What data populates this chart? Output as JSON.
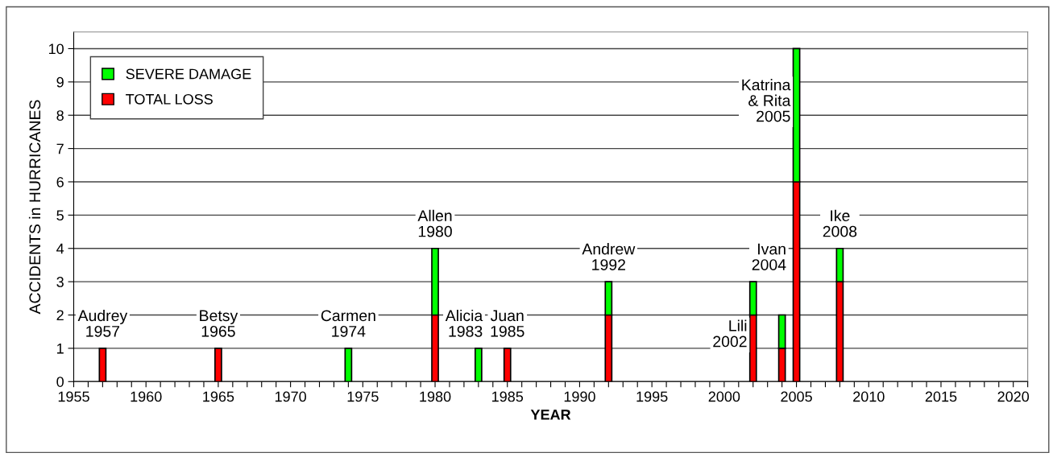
{
  "chart_data": {
    "type": "bar",
    "stacked": true,
    "xlabel": "YEAR",
    "ylabel": "ACCIDENTS in HURRICANES",
    "x": [
      1957,
      1965,
      1974,
      1980,
      1983,
      1985,
      1992,
      2002,
      2004,
      2005,
      2008
    ],
    "series": [
      {
        "name": "TOTAL LOSS",
        "color": "#ff0000",
        "values": [
          1,
          1,
          0,
          2,
          0,
          1,
          2,
          2,
          1,
          6,
          3
        ]
      },
      {
        "name": "SEVERE DAMAGE",
        "color": "#00ff00",
        "values": [
          0,
          0,
          1,
          2,
          1,
          0,
          1,
          1,
          1,
          4,
          1
        ]
      }
    ],
    "xlim": [
      1955,
      2021
    ],
    "ylim": [
      0,
      10.5
    ],
    "xticks": [
      1955,
      {
        "value": 1956,
        "label": null
      },
      {
        "value": 1957,
        "label": null
      },
      {
        "value": 1958,
        "label": null
      },
      {
        "value": 1959,
        "label": null
      },
      1960,
      {
        "value": 1961,
        "label": null
      },
      {
        "value": 1962,
        "label": null
      },
      {
        "value": 1963,
        "label": null
      },
      {
        "value": 1964,
        "label": null
      },
      1965,
      {
        "value": 1966,
        "label": null
      },
      {
        "value": 1967,
        "label": null
      },
      {
        "value": 1968,
        "label": null
      },
      {
        "value": 1969,
        "label": null
      },
      1970,
      {
        "value": 1971,
        "label": null
      },
      {
        "value": 1972,
        "label": null
      },
      {
        "value": 1973,
        "label": null
      },
      {
        "value": 1974,
        "label": null
      },
      1975,
      {
        "value": 1976,
        "label": null
      },
      {
        "value": 1977,
        "label": null
      },
      {
        "value": 1978,
        "label": null
      },
      {
        "value": 1979,
        "label": null
      },
      1980,
      {
        "value": 1981,
        "label": null
      },
      {
        "value": 1982,
        "label": null
      },
      {
        "value": 1983,
        "label": null
      },
      {
        "value": 1984,
        "label": null
      },
      1985,
      {
        "value": 1986,
        "label": null
      },
      {
        "value": 1987,
        "label": null
      },
      {
        "value": 1988,
        "label": null
      },
      {
        "value": 1989,
        "label": null
      },
      1990,
      {
        "value": 1991,
        "label": null
      },
      {
        "value": 1992,
        "label": null
      },
      {
        "value": 1993,
        "label": null
      },
      {
        "value": 1994,
        "label": null
      },
      1995,
      {
        "value": 1996,
        "label": null
      },
      {
        "value": 1997,
        "label": null
      },
      {
        "value": 1998,
        "label": null
      },
      {
        "value": 1999,
        "label": null
      },
      2000,
      {
        "value": 2001,
        "label": null
      },
      {
        "value": 2002,
        "label": null
      },
      {
        "value": 2003,
        "label": null
      },
      {
        "value": 2004,
        "label": null
      },
      2005,
      {
        "value": 2006,
        "label": null
      },
      {
        "value": 2007,
        "label": null
      },
      {
        "value": 2008,
        "label": null
      },
      {
        "value": 2009,
        "label": null
      },
      2010,
      {
        "value": 2011,
        "label": null
      },
      {
        "value": 2012,
        "label": null
      },
      {
        "value": 2013,
        "label": null
      },
      {
        "value": 2014,
        "label": null
      },
      2015,
      {
        "value": 2016,
        "label": null
      },
      {
        "value": 2017,
        "label": null
      },
      {
        "value": 2018,
        "label": null
      },
      {
        "value": 2019,
        "label": null
      },
      2020,
      {
        "value": 2021,
        "label": null
      }
    ],
    "yticks": [
      0,
      1,
      2,
      3,
      4,
      5,
      6,
      7,
      8,
      9,
      10
    ],
    "grid": "y",
    "legend": "top left",
    "annotations": [
      {
        "text": "Audrey\n1957",
        "x": 1957,
        "y": 1
      },
      {
        "text": "Betsy\n1965",
        "x": 1965,
        "y": 1
      },
      {
        "text": "Carmen\n1974",
        "x": 1974,
        "y": 1
      },
      {
        "text": "Allen\n1980",
        "x": 1980,
        "y": 4
      },
      {
        "text": "Alicia\n1983",
        "x": 1983,
        "y": 1
      },
      {
        "text": "Juan\n1985",
        "x": 1985,
        "y": 1
      },
      {
        "text": "Andrew\n1992",
        "x": 1992,
        "y": 3
      },
      {
        "text": "Lili\n2002",
        "x": 2002,
        "y": 3
      },
      {
        "text": "Ivan\n2004",
        "x": 2004,
        "y": 2
      },
      {
        "text": "Katrina\n& Rita\n2005",
        "x": 2005,
        "y": 10
      },
      {
        "text": "Ike\n2008",
        "x": 2008,
        "y": 4
      }
    ]
  }
}
